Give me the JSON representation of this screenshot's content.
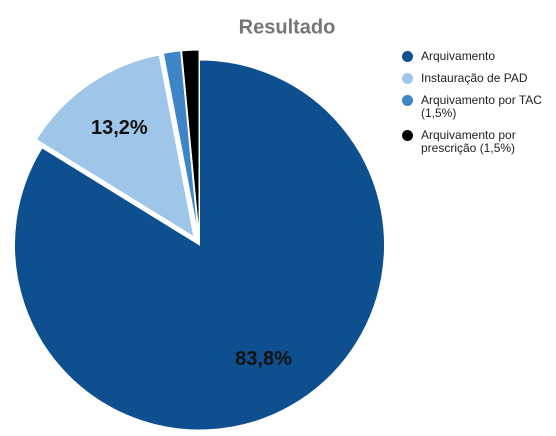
{
  "chart_data": {
    "type": "pie",
    "title": "Resultado",
    "categories": [
      "Arquivamento",
      "Instauração de PAD",
      "Arquivamento por TAC (1,5%)",
      "Arquivamento por prescrição (1,5%)"
    ],
    "values": [
      83.8,
      13.2,
      1.5,
      1.5
    ],
    "value_labels": [
      "83,8%",
      "13,2%",
      null,
      null
    ],
    "colors": [
      "#0d4f8f",
      "#9fc5e8",
      "#3d85c6",
      "#000000"
    ],
    "legend": "right"
  }
}
